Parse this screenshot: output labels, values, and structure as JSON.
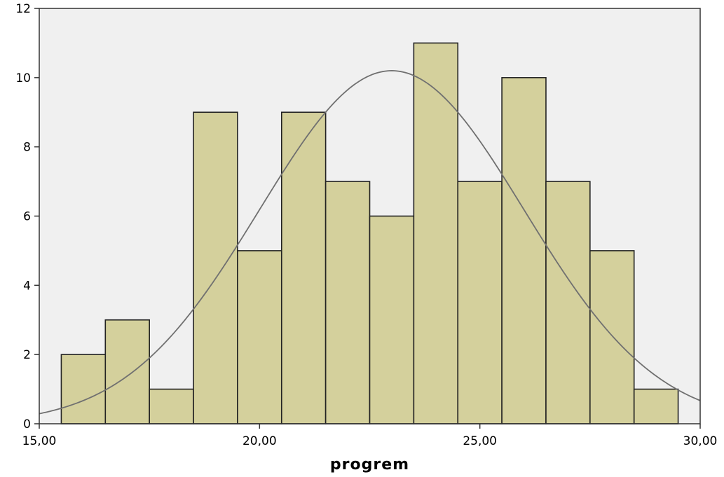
{
  "chart_data": {
    "type": "bar",
    "subtype": "histogram",
    "xlabel": "progrem",
    "ylabel": "",
    "title": "",
    "xlim": [
      15,
      30
    ],
    "ylim": [
      0,
      12
    ],
    "x_ticks": [
      {
        "value": 15,
        "label": "15,00"
      },
      {
        "value": 20,
        "label": "20,00"
      },
      {
        "value": 25,
        "label": "25,00"
      },
      {
        "value": 30,
        "label": "30,00"
      }
    ],
    "y_ticks": [
      {
        "value": 0,
        "label": "0"
      },
      {
        "value": 2,
        "label": "2"
      },
      {
        "value": 4,
        "label": "4"
      },
      {
        "value": 6,
        "label": "6"
      },
      {
        "value": 8,
        "label": "8"
      },
      {
        "value": 10,
        "label": "10"
      },
      {
        "value": 12,
        "label": "12"
      }
    ],
    "bin_width": 1,
    "bins": [
      {
        "start": 15.5,
        "end": 16.5,
        "count": 2
      },
      {
        "start": 16.5,
        "end": 17.5,
        "count": 3
      },
      {
        "start": 17.5,
        "end": 18.5,
        "count": 1
      },
      {
        "start": 18.5,
        "end": 19.5,
        "count": 9
      },
      {
        "start": 19.5,
        "end": 20.5,
        "count": 5
      },
      {
        "start": 20.5,
        "end": 21.5,
        "count": 9
      },
      {
        "start": 21.5,
        "end": 22.5,
        "count": 7
      },
      {
        "start": 22.5,
        "end": 23.5,
        "count": 6
      },
      {
        "start": 23.5,
        "end": 24.5,
        "count": 11
      },
      {
        "start": 24.5,
        "end": 25.5,
        "count": 7
      },
      {
        "start": 25.5,
        "end": 26.5,
        "count": 10
      },
      {
        "start": 26.5,
        "end": 27.5,
        "count": 7
      },
      {
        "start": 27.5,
        "end": 28.5,
        "count": 5
      },
      {
        "start": 28.5,
        "end": 29.5,
        "count": 1
      }
    ],
    "normal_curve": {
      "mean": 23.0,
      "sd": 3.0,
      "peak": 10.2
    },
    "grid": false,
    "colors": {
      "bar_fill": "#d4d09c",
      "bar_stroke": "#222222",
      "plot_background": "#f0f0f0",
      "curve": "#707070"
    }
  }
}
